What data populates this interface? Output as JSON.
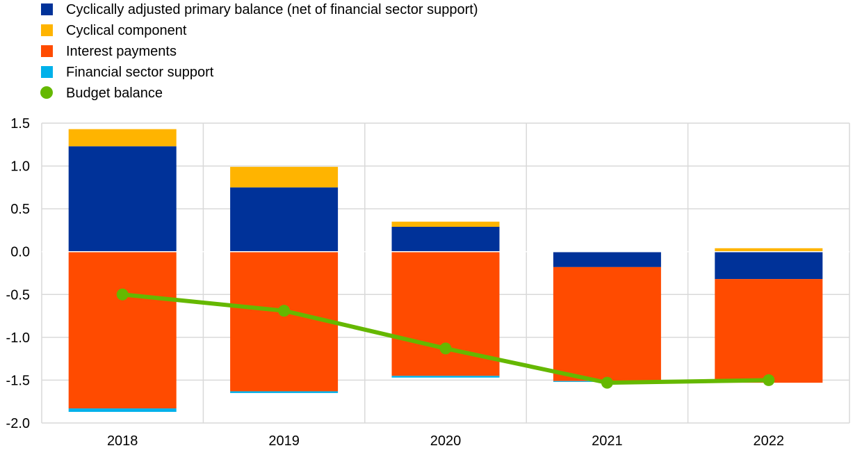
{
  "chart_data": {
    "type": "bar",
    "stacked": true,
    "categories": [
      "2018",
      "2019",
      "2020",
      "2021",
      "2022"
    ],
    "ylim": [
      -2.0,
      1.5
    ],
    "yticks": [
      "1.5",
      "1.0",
      "0.5",
      "0.0",
      "-0.5",
      "-1.0",
      "-1.5",
      "-2.0"
    ],
    "ytick_values": [
      1.5,
      1.0,
      0.5,
      0.0,
      -0.5,
      -1.0,
      -1.5,
      -2.0
    ],
    "grid": true,
    "legend_position": "top-left",
    "series": [
      {
        "name": "Cyclically adjusted primary balance (net of financial sector support)",
        "color": "#003299",
        "kind": "bar",
        "values": [
          1.23,
          0.75,
          0.29,
          -0.18,
          -0.32
        ]
      },
      {
        "name": "Cyclical component",
        "color": "#FFB400",
        "kind": "bar",
        "values": [
          0.2,
          0.24,
          0.06,
          0.0,
          0.04
        ]
      },
      {
        "name": "Interest payments",
        "color": "#FF4B00",
        "kind": "bar",
        "values": [
          -1.83,
          -1.63,
          -1.45,
          -1.33,
          -1.21
        ]
      },
      {
        "name": "Financial sector support",
        "color": "#00B1EA",
        "kind": "bar",
        "values": [
          -0.04,
          -0.02,
          -0.02,
          -0.01,
          0.0
        ]
      },
      {
        "name": "Budget balance",
        "color": "#65B800",
        "kind": "line",
        "values": [
          -0.5,
          -0.69,
          -1.13,
          -1.53,
          -1.5
        ]
      }
    ]
  }
}
